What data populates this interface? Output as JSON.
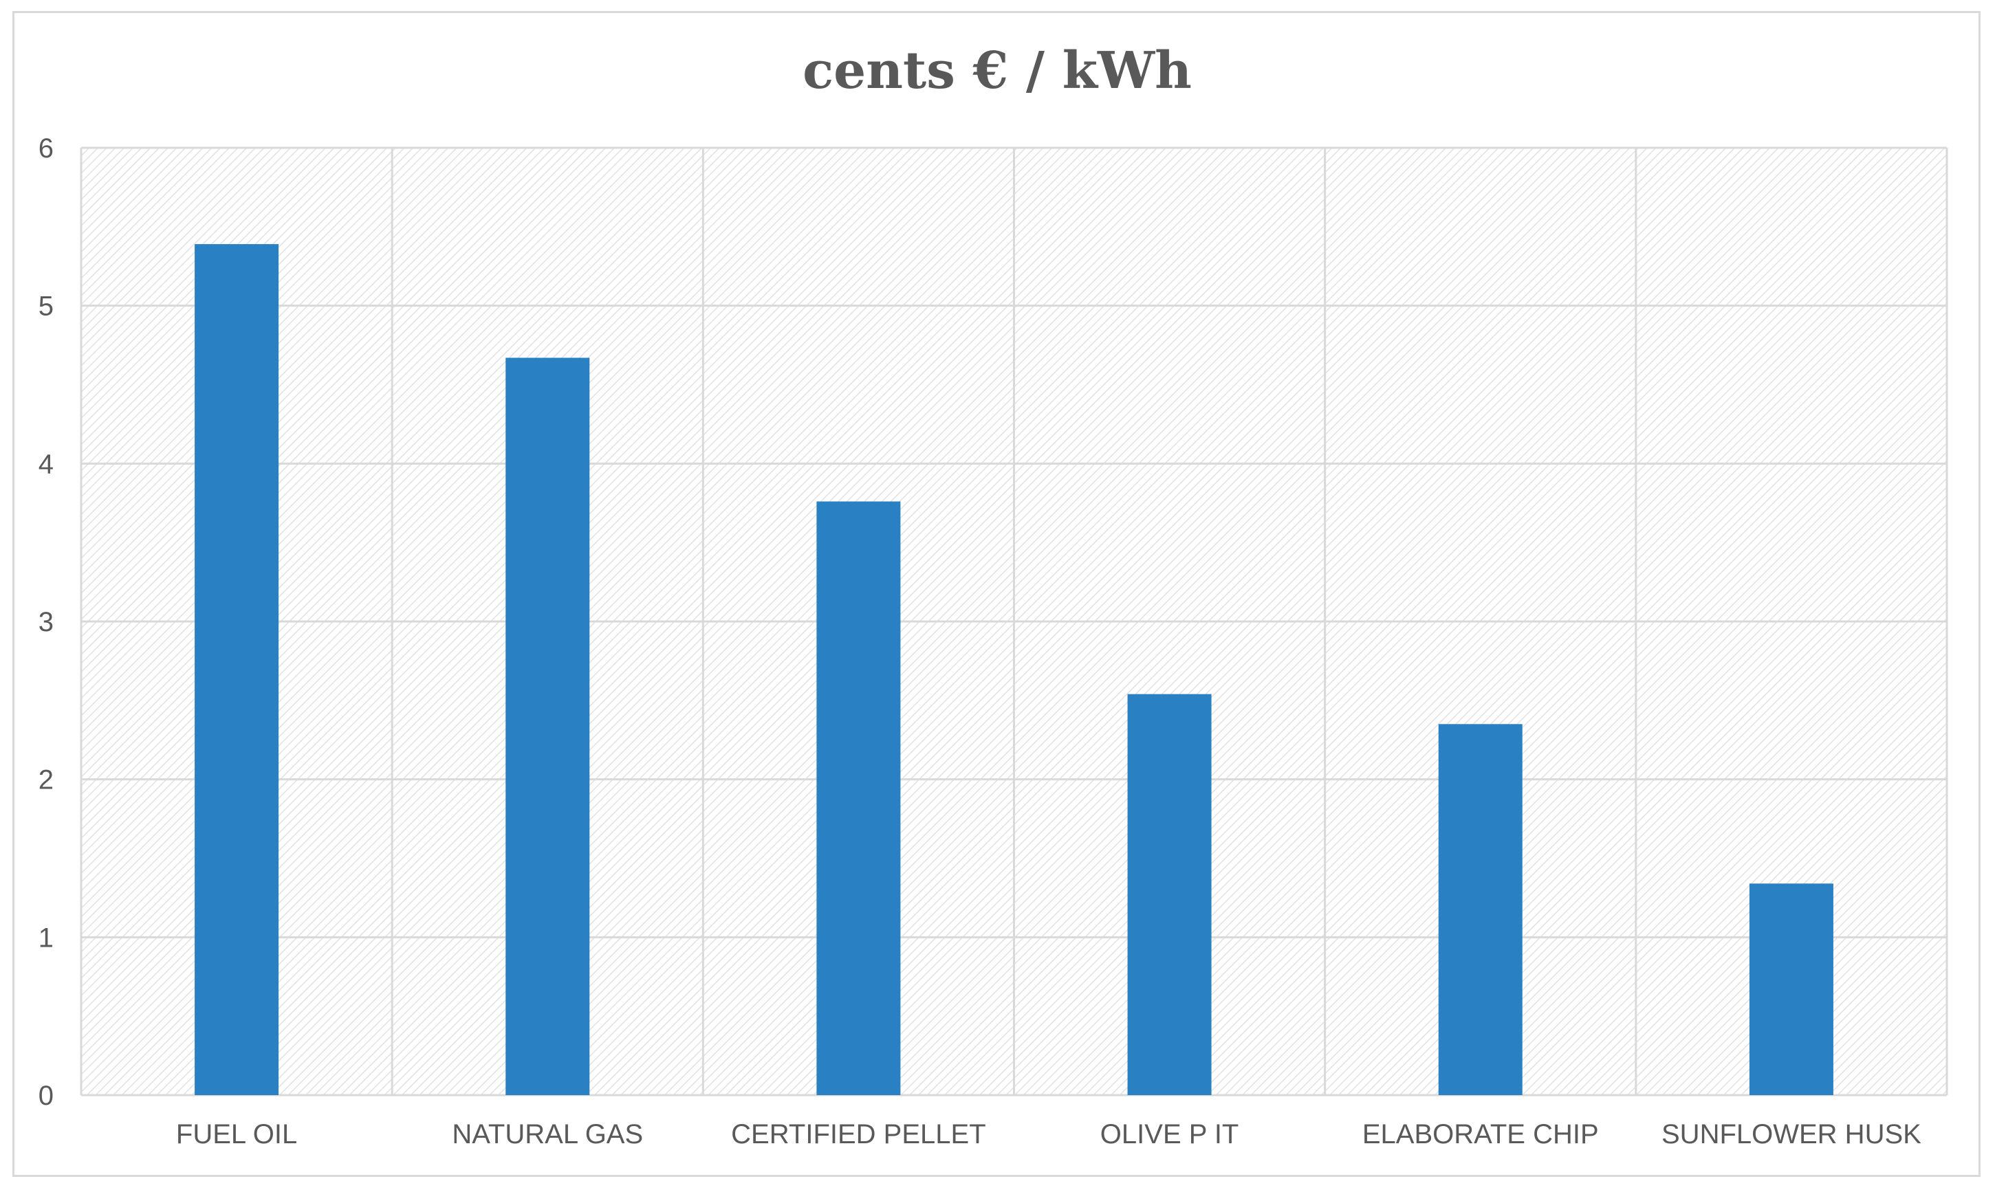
{
  "chart_data": {
    "type": "bar",
    "title": "cents € / kWh",
    "xlabel": "",
    "ylabel": "",
    "categories": [
      "FUEL OIL",
      "NATURAL GAS",
      "CERTIFIED PELLET",
      "OLIVE P IT",
      "ELABORATE CHIP",
      "SUNFLOWER HUSK"
    ],
    "values": [
      5.39,
      4.67,
      3.76,
      2.54,
      2.35,
      1.34
    ],
    "ylim": [
      0,
      6
    ],
    "yticks": [
      "0",
      "1",
      "2",
      "3",
      "4",
      "5",
      "6"
    ],
    "grid": true,
    "bar_color": "#2980c3",
    "grid_color": "#d9d9d9",
    "plot_pattern": "diagonal-hatch"
  }
}
